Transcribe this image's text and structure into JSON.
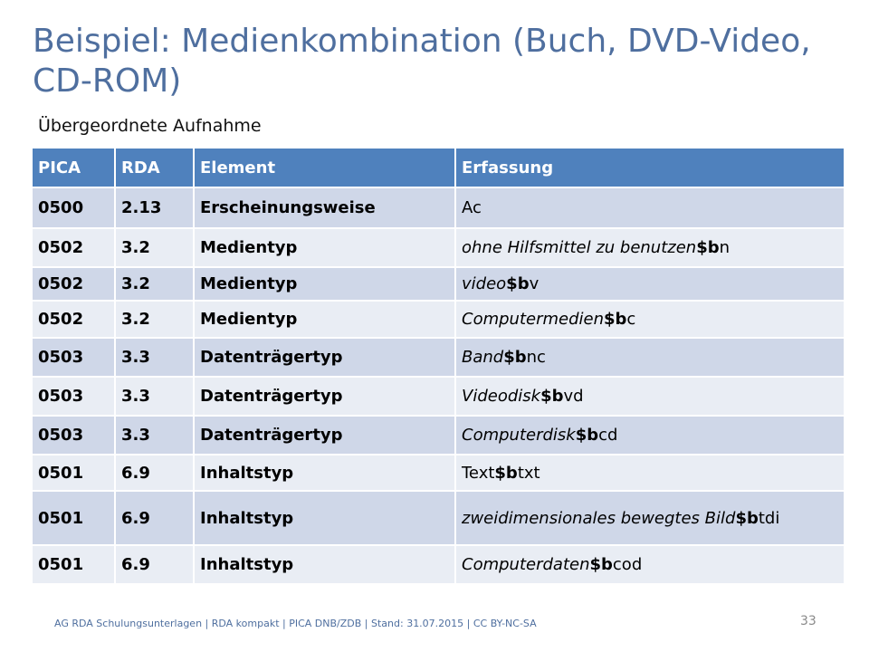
{
  "slide": {
    "title": "Beispiel: Medienkombination (Buch, DVD-Video, CD-ROM)",
    "subtitle": "Übergeordnete Aufnahme",
    "footer": "AG RDA Schulungsunterlagen  | RDA kompakt | PICA DNB/ZDB | Stand: 31.07.2015  | CC BY-NC-SA",
    "page_number": "33"
  },
  "table": {
    "headers": [
      "PICA",
      "RDA",
      "Element",
      "Erfassung"
    ],
    "rows": [
      {
        "pica": "0500",
        "rda": "2.13",
        "element": "Erscheinungsweise",
        "value": "Ac",
        "sf": "",
        "code": "",
        "italic": false
      },
      {
        "pica": "0502",
        "rda": "3.2",
        "element": "Medientyp",
        "value": "ohne Hilfsmittel zu benutzen",
        "sf": "$b",
        "code": "n",
        "italic": true
      },
      {
        "pica": "0502",
        "rda": "3.2",
        "element": "Medientyp",
        "value": "video",
        "sf": "$b",
        "code": "v",
        "italic": true
      },
      {
        "pica": "0502",
        "rda": "3.2",
        "element": "Medientyp",
        "value": "Computermedien",
        "sf": "$b",
        "code": "c",
        "italic": true
      },
      {
        "pica": "0503",
        "rda": "3.3",
        "element": "Datenträgertyp",
        "value": "Band",
        "sf": "$b",
        "code": "nc",
        "italic": true
      },
      {
        "pica": "0503",
        "rda": "3.3",
        "element": "Datenträgertyp",
        "value": "Videodisk",
        "sf": "$b",
        "code": "vd",
        "italic": true
      },
      {
        "pica": "0503",
        "rda": "3.3",
        "element": "Datenträgertyp",
        "value": "Computerdisk",
        "sf": "$b",
        "code": "cd",
        "italic": true
      },
      {
        "pica": "0501",
        "rda": "6.9",
        "element": "Inhaltstyp",
        "value": "Text",
        "sf": "$b",
        "code": "txt",
        "italic": false
      },
      {
        "pica": "0501",
        "rda": "6.9",
        "element": "Inhaltstyp",
        "value": "zweidimensionales bewegtes Bild",
        "sf": "$b",
        "code": "tdi",
        "italic": true
      },
      {
        "pica": "0501",
        "rda": "6.9",
        "element": "Inhaltstyp",
        "value": "Computerdaten",
        "sf": "$b",
        "code": "cod",
        "italic": true
      }
    ]
  },
  "colors": {
    "title": "#4f6f9f",
    "header_bg": "#4f81bd",
    "row_odd": "#cfd7e8",
    "row_even": "#e9edf4"
  }
}
